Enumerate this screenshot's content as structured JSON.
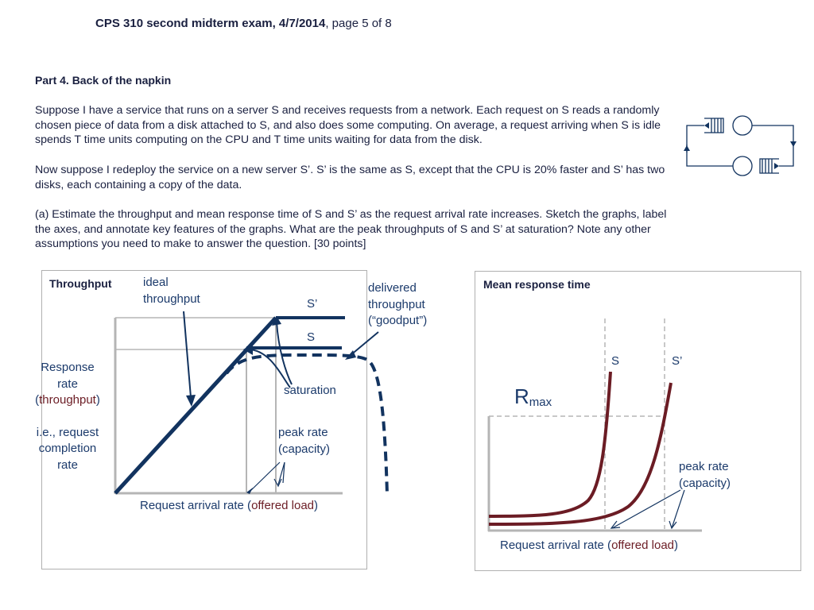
{
  "header": {
    "title_bold": "CPS 310 second midterm exam, 4/7/2014",
    "title_rest": ", page 5 of 8"
  },
  "part": {
    "title": "Part 4.  Back of the napkin",
    "paragraph1": "Suppose I have a service that runs on a server S and receives requests from a network.  Each request on S reads a randomly chosen piece of data from a disk attached to S, and also does some computing.  On average, a request arriving when S is idle spends T time units computing on the CPU and T time units waiting for data from the disk.",
    "paragraph2": "Now suppose I redeploy the service on a new server S’.  S’ is the same as S, except that the CPU is 20% faster and S’ has two disks, each containing a copy of the data.",
    "paragraph3": "(a) Estimate the throughput and mean response time of S and S’ as the request arrival rate increases.   Sketch the graphs, label the axes, and annotate key features of the graphs.   What are the peak throughputs of S and S’ at saturation?  Note any other assumptions you need to make to answer the question. [30 points]"
  },
  "throughput_panel": {
    "title": "Throughput",
    "ideal_line1": "ideal",
    "ideal_line2": "throughput",
    "s_prime": "S’",
    "s": "S",
    "delivered_line1": "delivered",
    "delivered_line2": "throughput",
    "delivered_line3": "(“goodput”)",
    "y_line1": "Response",
    "y_line2": "rate",
    "y_line3_pre": "(",
    "y_line3_mid": "throughput",
    "y_line3_post": ")",
    "y_line4": "i.e., request",
    "y_line5": "completion",
    "y_line6": "rate",
    "saturation": "saturation",
    "peak_line1": "peak rate",
    "peak_line2": "(capacity)",
    "x_pre": "Request arrival rate (",
    "x_mid": "offered load",
    "x_post": ")"
  },
  "response_panel": {
    "title": "Mean response time",
    "s": "S",
    "s_prime": "S’",
    "rmax_main": "R",
    "rmax_sub": "max",
    "peak_line1": "peak rate",
    "peak_line2": "(capacity)",
    "x_pre": "Request arrival rate (",
    "x_mid": "offered load",
    "x_post": ")"
  },
  "colors": {
    "navy": "#12335f",
    "maroon": "#6b1c24",
    "grey_axis": "#b5b5b5",
    "text": "#1a2040"
  }
}
